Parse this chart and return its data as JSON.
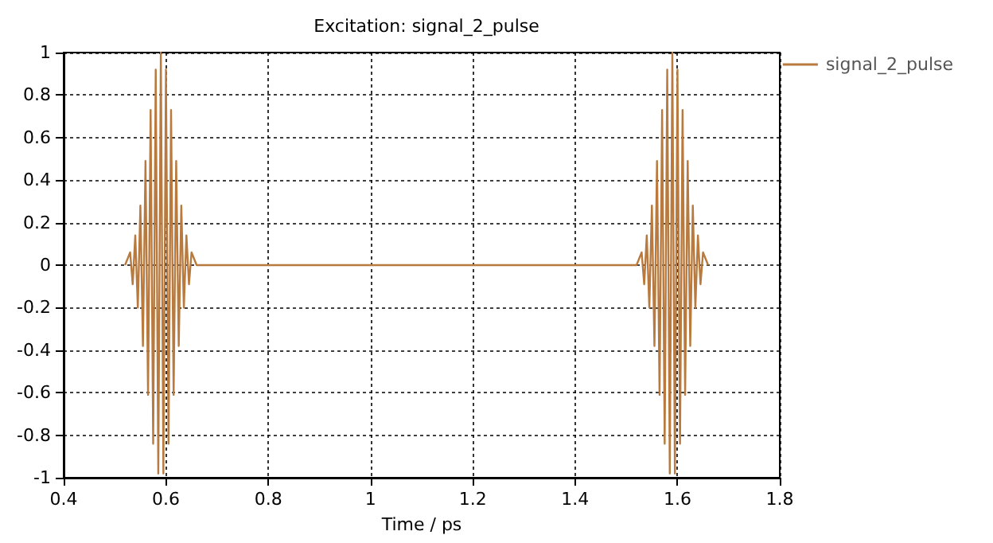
{
  "chart_data": {
    "type": "line",
    "title": "Excitation: signal_2_pulse",
    "xlabel": "Time / ps",
    "series": [
      {
        "name": "signal_2_pulse",
        "color": "#b87a3e",
        "x": [
          0.52,
          0.53,
          0.535,
          0.54,
          0.545,
          0.55,
          0.555,
          0.56,
          0.565,
          0.57,
          0.575,
          0.58,
          0.585,
          0.59,
          0.595,
          0.6,
          0.605,
          0.61,
          0.615,
          0.62,
          0.625,
          0.63,
          0.635,
          0.64,
          0.645,
          0.65,
          0.66,
          1.52,
          1.53,
          1.535,
          1.54,
          1.545,
          1.55,
          1.555,
          1.56,
          1.565,
          1.57,
          1.575,
          1.58,
          1.585,
          1.59,
          1.595,
          1.6,
          1.605,
          1.61,
          1.615,
          1.62,
          1.625,
          1.63,
          1.635,
          1.64,
          1.645,
          1.65,
          1.66
        ],
        "values": [
          0,
          0.06,
          -0.09,
          0.14,
          -0.2,
          0.28,
          -0.38,
          0.49,
          -0.61,
          0.73,
          -0.84,
          0.92,
          -0.98,
          1,
          -0.98,
          0.92,
          -0.84,
          0.73,
          -0.61,
          0.49,
          -0.38,
          0.28,
          -0.2,
          0.14,
          -0.09,
          0.06,
          0,
          0,
          0.06,
          -0.09,
          0.14,
          -0.2,
          0.28,
          -0.38,
          0.49,
          -0.61,
          0.73,
          -0.84,
          0.92,
          -0.98,
          1,
          -0.98,
          0.92,
          -0.84,
          0.73,
          -0.61,
          0.49,
          -0.38,
          0.28,
          -0.2,
          0.14,
          -0.09,
          0.06,
          0
        ]
      }
    ],
    "xlim": [
      0.4,
      1.8
    ],
    "xticks": [
      0.4,
      0.6,
      0.8,
      1,
      1.2,
      1.4,
      1.6,
      1.8
    ],
    "ylim": [
      -1,
      1
    ],
    "yticks": [
      -1,
      -0.8,
      -0.6,
      -0.4,
      -0.2,
      0,
      0.2,
      0.4,
      0.6,
      0.8,
      1
    ],
    "grid": true,
    "legend": "top right",
    "marker": "none",
    "line_style": "solid"
  }
}
